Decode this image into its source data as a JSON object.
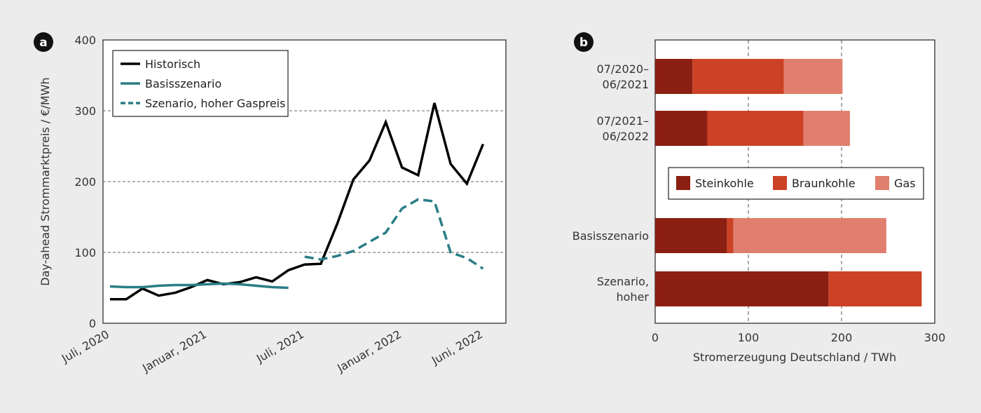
{
  "chart_data": [
    {
      "panel_label": "a",
      "type": "line",
      "xlabel": "",
      "ylabel": "Day-ahead Strommarktpreis / €/MWh",
      "ylim": [
        0,
        400
      ],
      "yticks": [
        "0",
        "100",
        "200",
        "300",
        "400"
      ],
      "xticks": [
        "Juli, 2020",
        "Januar, 2021",
        "Juli, 2021",
        "Januar, 2022",
        "Juni, 2022"
      ],
      "grid": "horizontal dashed",
      "legend_position": "top-left",
      "series": [
        {
          "name": "Historisch",
          "color": "#000000",
          "style": "solid",
          "x": [
            "2020-07",
            "2020-08",
            "2020-09",
            "2020-10",
            "2020-11",
            "2020-12",
            "2021-01",
            "2021-02",
            "2021-03",
            "2021-04",
            "2021-05",
            "2021-06",
            "2021-07",
            "2021-08",
            "2021-09",
            "2021-10",
            "2021-11",
            "2021-12",
            "2022-01",
            "2022-02",
            "2022-03",
            "2022-04",
            "2022-05",
            "2022-06"
          ],
          "values": [
            34,
            34,
            49,
            39,
            43,
            51,
            61,
            55,
            58,
            65,
            59,
            75,
            83,
            84,
            140,
            203,
            230,
            284,
            220,
            209,
            311,
            225,
            197,
            253
          ]
        },
        {
          "name": "Basisszenario",
          "color": "#2a7d86",
          "style": "solid",
          "x": [
            "2020-07",
            "2020-08",
            "2020-09",
            "2020-10",
            "2020-11",
            "2020-12",
            "2021-01",
            "2021-02",
            "2021-03",
            "2021-04",
            "2021-05",
            "2021-06"
          ],
          "values": [
            52,
            51,
            51,
            53,
            54,
            54,
            55,
            56,
            55,
            53,
            51,
            50
          ]
        },
        {
          "name": "Szenario, hoher Gaspreis",
          "color": "#2a7d86",
          "style": "dashed",
          "x": [
            "2021-07",
            "2021-08",
            "2021-09",
            "2021-10",
            "2021-11",
            "2021-12",
            "2022-01",
            "2022-02",
            "2022-03",
            "2022-04",
            "2022-05",
            "2022-06"
          ],
          "values": [
            94,
            90,
            95,
            102,
            115,
            128,
            162,
            175,
            172,
            100,
            92,
            77
          ]
        }
      ]
    },
    {
      "panel_label": "b",
      "type": "bar",
      "orientation": "horizontal",
      "stacked": true,
      "xlabel": "Stromerzeugung Deutschland / TWh",
      "ylabel": "",
      "xlim": [
        0,
        300
      ],
      "xticks": [
        "0",
        "100",
        "200",
        "300"
      ],
      "grid": "vertical dashed",
      "legend_position": "center",
      "categories": [
        [
          "07/2020–",
          "06/2021"
        ],
        [
          "07/2021–",
          "06/2022"
        ],
        [
          "Basisszenario"
        ],
        [
          "Szenario,",
          "hoher"
        ]
      ],
      "category_slots": [
        0,
        1,
        3,
        4
      ],
      "series": [
        {
          "name": "Steinkohle",
          "color": "#8a1f12",
          "values": [
            40,
            56,
            77,
            186
          ]
        },
        {
          "name": "Braunkohle",
          "color": "#cc4226",
          "values": [
            98,
            103,
            7,
            100
          ]
        },
        {
          "name": "Gas",
          "color": "#e07f6d",
          "values": [
            63,
            50,
            164,
            0
          ]
        }
      ]
    }
  ]
}
